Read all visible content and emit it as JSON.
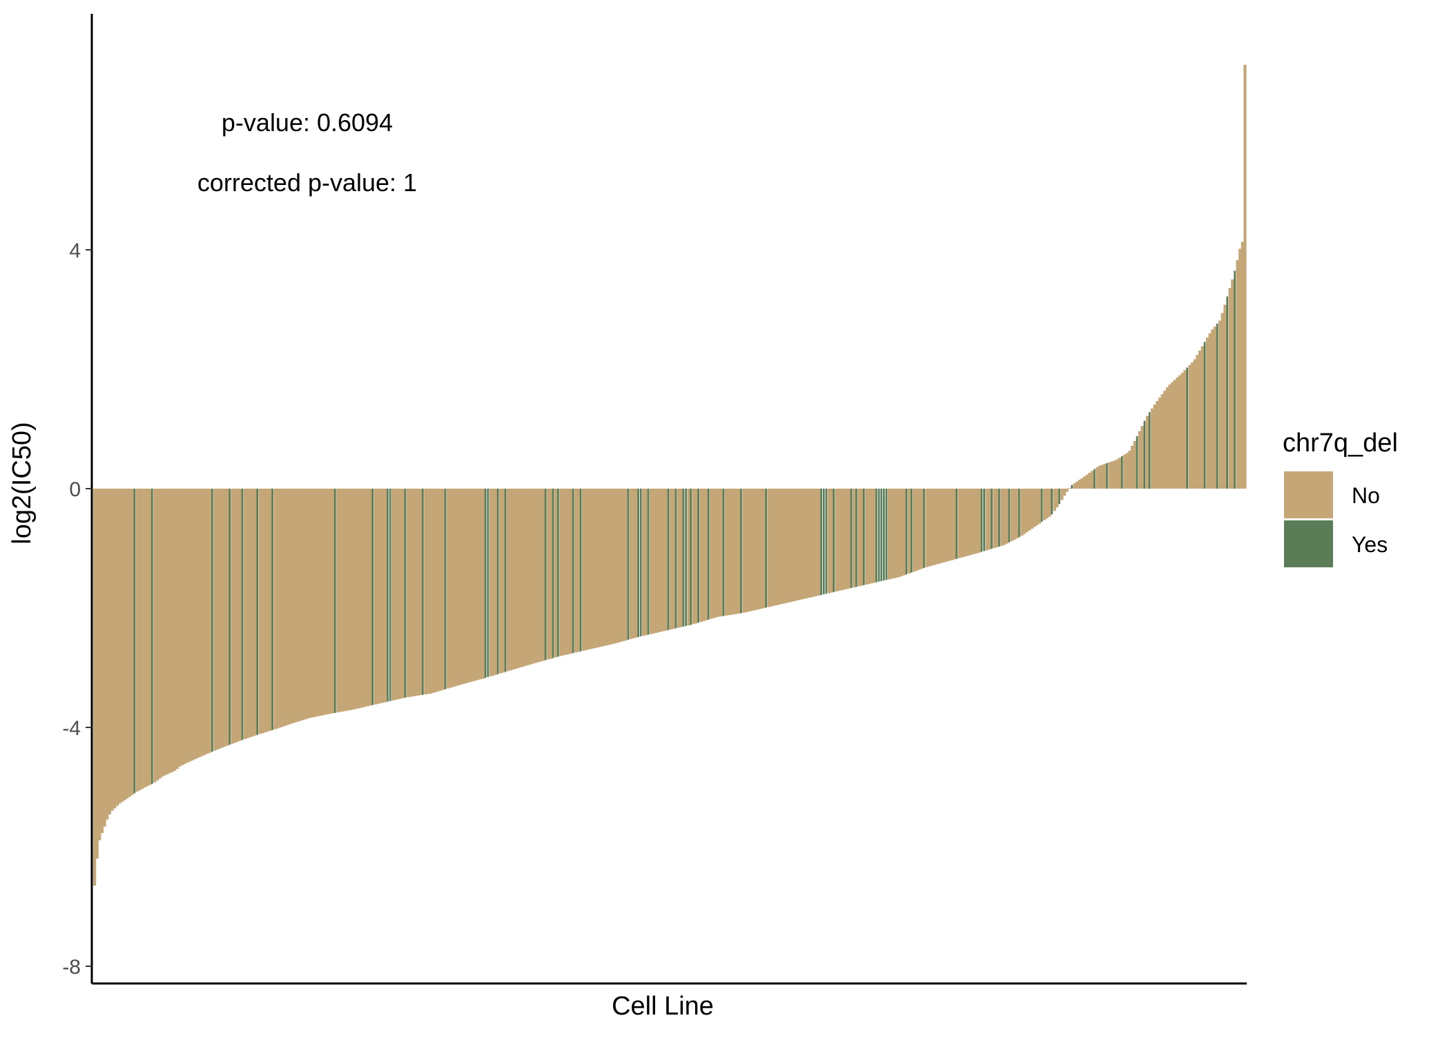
{
  "chart_data": {
    "type": "bar",
    "title": "",
    "xlabel": "Cell Line",
    "ylabel": "log2(IC50)",
    "ylim": [
      -8.4,
      7.1
    ],
    "yticks": [
      4,
      0,
      -4,
      -8
    ],
    "grid": false,
    "legend": {
      "title": "chr7q_del",
      "position": "right",
      "entries": [
        "No",
        "Yes"
      ]
    },
    "colors": {
      "No": "#C4A677",
      "Yes": "#5A7D57",
      "axis": "#000000",
      "text": "#000000",
      "tick_text": "#4D4D4D"
    },
    "annotations": [
      "p-value: 0.6094",
      "corrected p-value: 1"
    ],
    "n_cell_lines": 460,
    "value_anchors": [
      [
        0,
        -7.65
      ],
      [
        1,
        -6.85
      ],
      [
        2,
        -6.4
      ],
      [
        4,
        -6.3
      ],
      [
        5,
        -6.0
      ],
      [
        7,
        -5.9
      ],
      [
        9,
        -5.8
      ],
      [
        12,
        -5.72
      ],
      [
        14,
        -5.6
      ],
      [
        20,
        -5.42
      ],
      [
        30,
        -5.28
      ],
      [
        40,
        -5.18
      ],
      [
        50,
        -5.08
      ],
      [
        60,
        -5.0
      ],
      [
        70,
        -4.93
      ],
      [
        80,
        -4.82
      ],
      [
        95,
        -4.72
      ],
      [
        100,
        -4.65
      ],
      [
        110,
        -4.58
      ],
      [
        130,
        -4.45
      ],
      [
        150,
        -4.33
      ],
      [
        170,
        -4.22
      ],
      [
        190,
        -4.12
      ],
      [
        210,
        -4.03
      ],
      [
        230,
        -3.93
      ],
      [
        250,
        -3.84
      ],
      [
        270,
        -3.78
      ],
      [
        300,
        -3.7
      ],
      [
        330,
        -3.6
      ],
      [
        360,
        -3.5
      ],
      [
        390,
        -3.43
      ],
      [
        420,
        -3.3
      ],
      [
        450,
        -3.18
      ],
      [
        480,
        -3.05
      ],
      [
        510,
        -2.92
      ],
      [
        540,
        -2.8
      ],
      [
        570,
        -2.7
      ],
      [
        600,
        -2.6
      ],
      [
        630,
        -2.48
      ],
      [
        660,
        -2.38
      ],
      [
        690,
        -2.28
      ],
      [
        720,
        -2.15
      ],
      [
        750,
        -2.08
      ],
      [
        780,
        -1.98
      ],
      [
        810,
        -1.88
      ],
      [
        840,
        -1.78
      ],
      [
        870,
        -1.68
      ],
      [
        900,
        -1.58
      ],
      [
        930,
        -1.48
      ],
      [
        960,
        -1.32
      ],
      [
        990,
        -1.2
      ],
      [
        1020,
        -1.08
      ],
      [
        1050,
        -0.95
      ],
      [
        1070,
        -0.8
      ],
      [
        1090,
        -0.6
      ],
      [
        1105,
        -0.45
      ],
      [
        1115,
        -0.25
      ],
      [
        1122,
        -0.08
      ],
      [
        1128,
        0.05
      ],
      [
        1135,
        0.12
      ],
      [
        1145,
        0.22
      ],
      [
        1160,
        0.38
      ],
      [
        1180,
        0.48
      ],
      [
        1195,
        0.62
      ],
      [
        1205,
        0.9
      ],
      [
        1215,
        1.2
      ],
      [
        1225,
        1.42
      ],
      [
        1240,
        1.72
      ],
      [
        1255,
        1.92
      ],
      [
        1270,
        2.15
      ],
      [
        1280,
        2.4
      ],
      [
        1290,
        2.65
      ],
      [
        1300,
        2.82
      ],
      [
        1310,
        3.3
      ],
      [
        1318,
        3.7
      ],
      [
        1324,
        4.1
      ],
      [
        1329,
        4.2
      ],
      [
        1330,
        7.1
      ]
    ],
    "yes_indices": [
      16,
      23,
      47,
      54,
      59,
      65,
      71,
      96,
      111,
      117,
      118,
      124,
      131,
      140,
      156,
      157,
      161,
      164,
      180,
      183,
      185,
      191,
      194,
      213,
      217,
      218,
      221,
      229,
      232,
      235,
      236,
      238,
      241,
      245,
      251,
      258,
      268,
      290,
      291,
      292,
      295,
      302,
      304,
      307,
      312,
      313,
      314,
      315,
      316,
      324,
      326,
      331,
      344,
      354,
      355,
      358,
      361,
      365,
      369,
      378,
      382,
      385,
      390,
      399,
      404,
      410,
      416,
      419,
      421,
      436,
      443,
      448,
      452,
      455
    ]
  }
}
